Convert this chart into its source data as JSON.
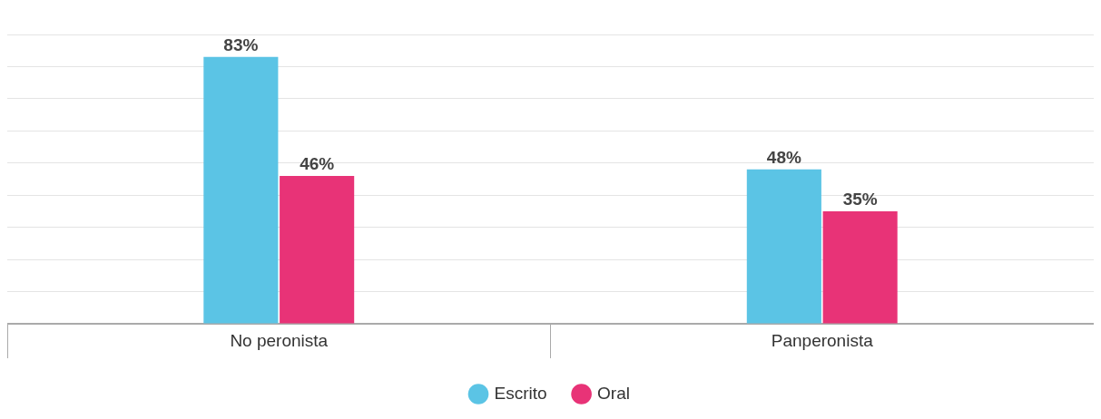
{
  "chart_data": {
    "type": "bar",
    "categories": [
      "No peronista",
      "Panperonista"
    ],
    "series": [
      {
        "name": "Escrito",
        "color": "#5bc4e5",
        "values": [
          83,
          48
        ],
        "value_labels": [
          "83%",
          "48%"
        ]
      },
      {
        "name": "Oral",
        "color": "#e83377",
        "values": [
          46,
          35
        ],
        "value_labels": [
          "46%",
          "35%"
        ]
      }
    ],
    "ylim": [
      0,
      90
    ],
    "yticks": [
      {
        "value": 0,
        "label": null
      },
      {
        "value": 10,
        "label": null
      },
      {
        "value": 20,
        "label": null
      },
      {
        "value": 30,
        "label": null
      },
      {
        "value": 40,
        "label": null
      },
      {
        "value": 50,
        "label": null
      },
      {
        "value": 60,
        "label": null
      },
      {
        "value": 70,
        "label": null
      },
      {
        "value": 80,
        "label": null
      },
      {
        "value": 90,
        "label": null
      }
    ],
    "tick_labels": "x",
    "grid": "y",
    "legend": "bottom"
  }
}
